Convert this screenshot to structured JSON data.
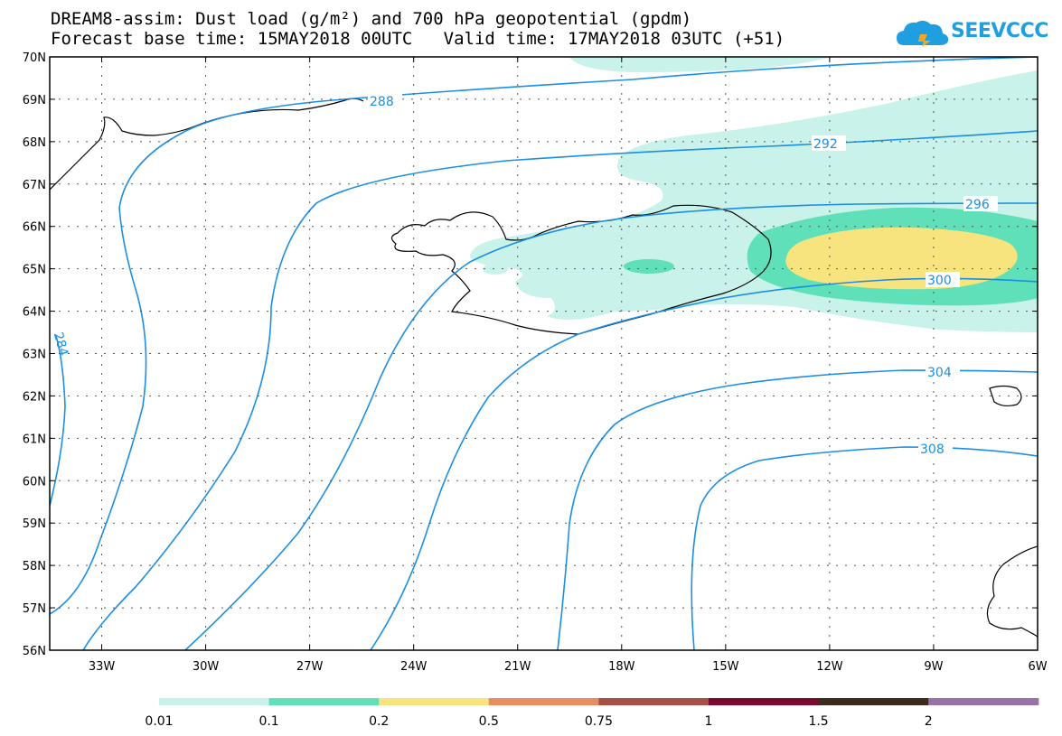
{
  "header": {
    "title_line1": "DREAM8-assim: Dust load (g/m²) and 700 hPa geopotential (gpdm)",
    "title_line2": "Forecast base time: 15MAY2018 00UTC   Valid time: 17MAY2018 03UTC (+51)",
    "logo_text": "SEEVCCC"
  },
  "map": {
    "lat_labels": [
      "70N",
      "69N",
      "68N",
      "67N",
      "66N",
      "65N",
      "64N",
      "63N",
      "62N",
      "61N",
      "60N",
      "59N",
      "58N",
      "57N",
      "56N"
    ],
    "lon_labels": [
      "33W",
      "30W",
      "27W",
      "24W",
      "21W",
      "18W",
      "15W",
      "12W",
      "9W",
      "6W"
    ],
    "contour_labels": [
      "288",
      "292",
      "296",
      "300",
      "304",
      "308",
      "284"
    ],
    "contour_color": "#1a8fe3"
  },
  "colorbar": {
    "colors": [
      "#c8f2ea",
      "#5fe0b8",
      "#f7e47e",
      "#e88c63",
      "#a84f46",
      "#7a0a2e",
      "#3d2a1e",
      "#9a72a8"
    ],
    "labels": [
      "0.01",
      "0.1",
      "0.2",
      "0.5",
      "0.75",
      "1",
      "1.5",
      "2"
    ]
  }
}
